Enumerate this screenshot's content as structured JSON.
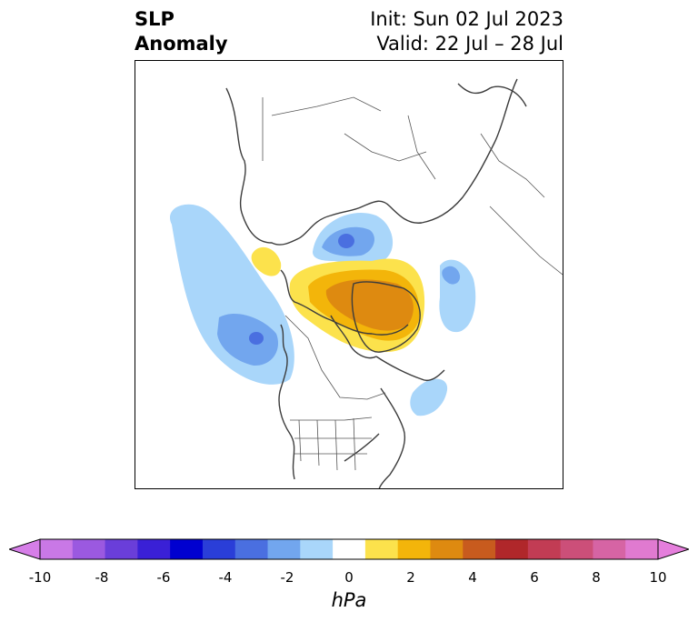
{
  "header": {
    "variable_line1": "SLP",
    "variable_line2": "Anomaly",
    "init_text": "Init: Sun 02 Jul 2023",
    "valid_text": "Valid: 22 Jul – 28 Jul"
  },
  "colorbar": {
    "units": "hPa",
    "tick_labels": [
      "-10",
      "-8",
      "-6",
      "-4",
      "-2",
      "0",
      "2",
      "4",
      "6",
      "8",
      "10"
    ],
    "bins": [
      {
        "range": "<-10",
        "color": "#d67ee8"
      },
      {
        "range": "-10 to -9",
        "color": "#c978e6"
      },
      {
        "range": "-9 to -8",
        "color": "#9b59e0"
      },
      {
        "range": "-8 to -7",
        "color": "#6a3ed9"
      },
      {
        "range": "-7 to -6",
        "color": "#3a20d6"
      },
      {
        "range": "-6 to -5",
        "color": "#0000d0"
      },
      {
        "range": "-5 to -4",
        "color": "#2a3ed8"
      },
      {
        "range": "-4 to -3",
        "color": "#4a6fe0"
      },
      {
        "range": "-3 to -2",
        "color": "#72a6ee"
      },
      {
        "range": "-2 to -1",
        "color": "#a9d6fa"
      },
      {
        "range": "-1 to 1",
        "color": "#ffffff"
      },
      {
        "range": "1 to 2",
        "color": "#fce24c"
      },
      {
        "range": "2 to 3",
        "color": "#f3b50a"
      },
      {
        "range": "3 to 4",
        "color": "#de8a10"
      },
      {
        "range": "4 to 5",
        "color": "#c85b1e"
      },
      {
        "range": "5 to 6",
        "color": "#b0272a"
      },
      {
        "range": "6 to 7",
        "color": "#c23c54"
      },
      {
        "range": "7 to 8",
        "color": "#cc4f79"
      },
      {
        "range": "8 to 9",
        "color": "#d664a4"
      },
      {
        "range": "9 to 10",
        "color": "#e07ad0"
      },
      {
        "range": ">10",
        "color": "#e57edc"
      }
    ]
  },
  "map": {
    "projection": "north-polar-stereographic",
    "region": "North America / Arctic",
    "features": [
      "coastlines",
      "country-borders",
      "us-state-borders"
    ],
    "anomaly_centers": [
      {
        "name": "aleutian-gulf-of-alaska-low",
        "value_hPa": -4
      },
      {
        "name": "beaufort-laptev-low",
        "value_hPa": -4
      },
      {
        "name": "greenland-high",
        "value_hPa": 4
      },
      {
        "name": "northwest-atlantic-low",
        "value_hPa": -2
      },
      {
        "name": "iceland-norwegian-low",
        "value_hPa": -2
      }
    ]
  }
}
